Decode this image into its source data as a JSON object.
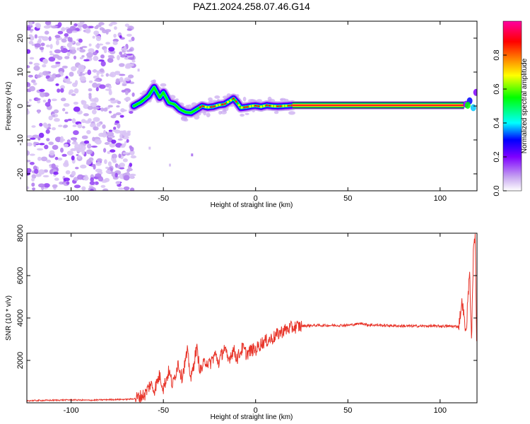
{
  "chart_data": [
    {
      "type": "heatmap",
      "title": "PAZ1.2024.258.07.46.G14",
      "xlabel": "Height of straight line (km)",
      "ylabel": "Frequency (Hz)",
      "xlim": [
        -124,
        120
      ],
      "ylim": [
        -25,
        25
      ],
      "xticks": [
        -100,
        -50,
        0,
        50,
        100
      ],
      "yticks": [
        -20,
        -10,
        0,
        10,
        20
      ],
      "colorbar": {
        "label": "Normalized spectral amplitude",
        "range": [
          0,
          1
        ],
        "ticks": [
          0.0,
          0.2,
          0.4,
          0.6,
          0.8
        ],
        "colormap": [
          "#ffffff",
          "#c7a6f0",
          "#7f00ff",
          "#0000ff",
          "#00ffff",
          "#00ff00",
          "#ffff00",
          "#ff8000",
          "#ff0000",
          "#ff00a0"
        ]
      },
      "regions": [
        {
          "description": "scattered noise",
          "x_range": [
            -124,
            -66
          ],
          "y_range": [
            -25,
            25
          ]
        },
        {
          "description": "wavy signal",
          "x_range": [
            -66,
            20
          ],
          "y_range": [
            -4,
            7
          ]
        },
        {
          "description": "steady line",
          "x_range": [
            20,
            113
          ],
          "frequency": 0.2,
          "amplitude": 1.0
        }
      ],
      "ridge": {
        "x": [
          -66,
          -62,
          -58,
          -55,
          -52,
          -50,
          -47,
          -44,
          -41,
          -38,
          -35,
          -32,
          -29,
          -26,
          -23,
          -20,
          -17,
          -14,
          -12,
          -10,
          -8,
          -5,
          -2,
          0,
          3,
          6,
          9,
          12,
          15,
          18,
          20
        ],
        "y": [
          0,
          1.2,
          3.0,
          5.5,
          2.5,
          4.0,
          1.0,
          0.5,
          -1.0,
          -1.8,
          -2.0,
          -1.0,
          0.0,
          -0.4,
          -0.2,
          0.3,
          0.5,
          1.5,
          2.2,
          1.0,
          -0.5,
          -0.3,
          0.0,
          0.1,
          -0.2,
          0.2,
          0.0,
          -0.1,
          0.0,
          0.1,
          0.2
        ]
      }
    },
    {
      "type": "line",
      "xlabel": "Height of straight line (km)",
      "ylabel": "SNR (10 * v/v)",
      "xlim": [
        -124,
        120
      ],
      "ylim": [
        0,
        8000
      ],
      "xticks": [
        -100,
        -50,
        0,
        50,
        100
      ],
      "yticks": [
        2000,
        4000,
        6000,
        8000
      ],
      "series": [
        {
          "color": "#e8352a",
          "x": [
            -124,
            -110,
            -100,
            -90,
            -80,
            -70,
            -65,
            -60,
            -57,
            -55,
            -52,
            -50,
            -47,
            -45,
            -42,
            -40,
            -37,
            -35,
            -32,
            -30,
            -27,
            -25,
            -22,
            -20,
            -17,
            -15,
            -12,
            -10,
            -7,
            -5,
            -2,
            0,
            3,
            5,
            8,
            10,
            13,
            15,
            18,
            20,
            23,
            25,
            30,
            40,
            50,
            58,
            60,
            70,
            80,
            90,
            100,
            105,
            110,
            112,
            114,
            116,
            117,
            118,
            119,
            120
          ],
          "y": [
            100,
            120,
            140,
            120,
            150,
            160,
            200,
            400,
            900,
            600,
            1300,
            700,
            1500,
            800,
            1900,
            1200,
            2400,
            1100,
            2600,
            1500,
            2000,
            1800,
            2300,
            1900,
            2600,
            2000,
            2500,
            2100,
            2600,
            2300,
            2500,
            2500,
            2800,
            2900,
            3000,
            3100,
            3300,
            3400,
            3500,
            3550,
            3600,
            3620,
            3650,
            3650,
            3660,
            3750,
            3680,
            3650,
            3620,
            3620,
            3620,
            3610,
            3600,
            4800,
            3200,
            6300,
            2800,
            7000,
            8000,
            1800
          ]
        }
      ]
    }
  ]
}
